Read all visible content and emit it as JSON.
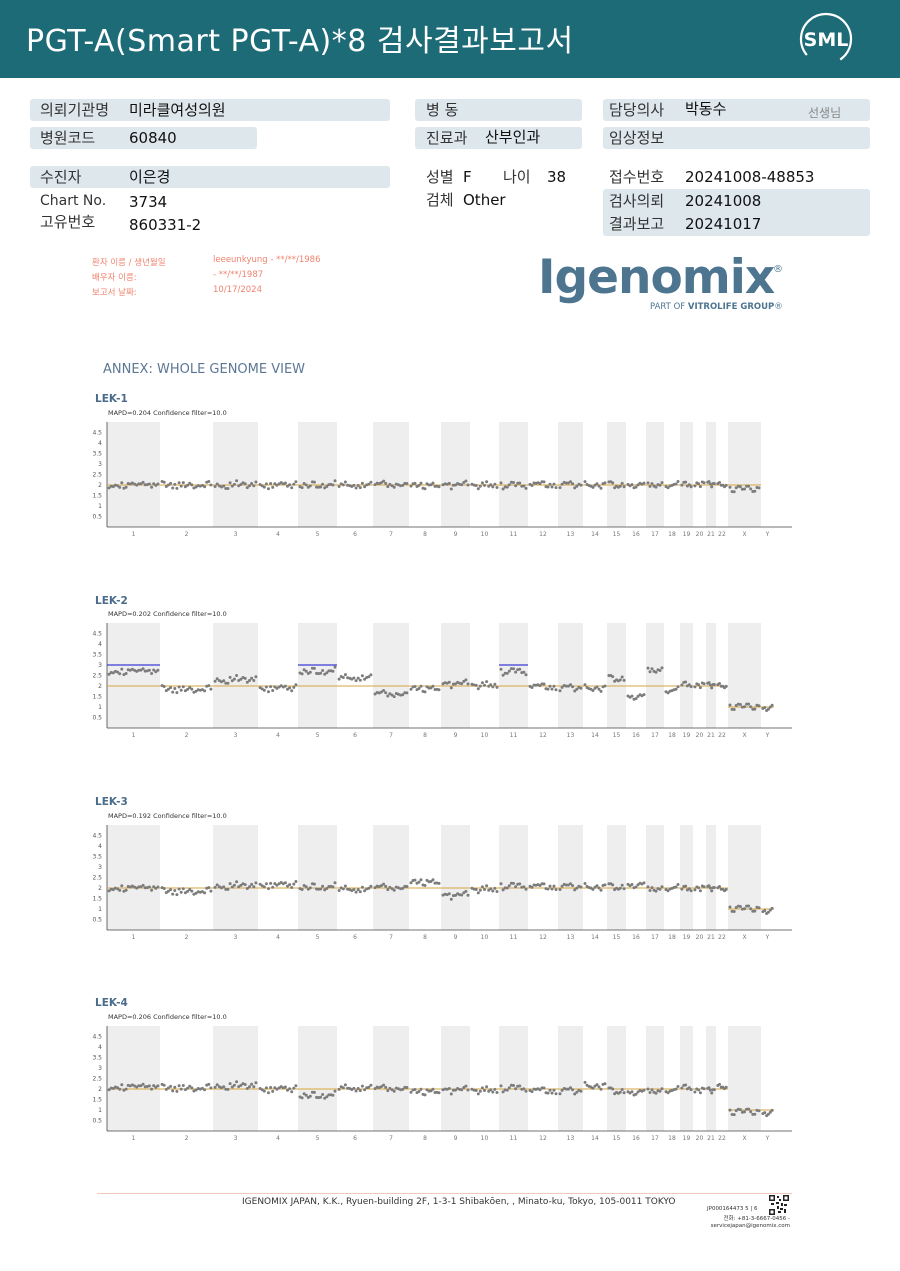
{
  "header": {
    "title": "PGT-A(Smart  PGT-A)*8 검사결과보고서",
    "logo_text": "SML",
    "colors": {
      "band": "#1e6b78",
      "text": "#ffffff"
    }
  },
  "form": {
    "institution": {
      "label": "의뢰기관명",
      "value": "미라클여성의원"
    },
    "hospital_code": {
      "label": "병원코드",
      "value": "60840"
    },
    "ward": {
      "label": "병  동",
      "value": ""
    },
    "department": {
      "label": "진료과",
      "value": "산부인과"
    },
    "doctor": {
      "label": "담당의사",
      "value": "박동수",
      "suffix": "선생님"
    },
    "clinical_info": {
      "label": "임상정보",
      "value": ""
    },
    "patient": {
      "label": "수진자",
      "value": "이은경"
    },
    "chart_no": {
      "label": "Chart No.",
      "value": "3734"
    },
    "unique_no": {
      "label": "고유번호",
      "value": "860331-2"
    },
    "sex": {
      "label": "성별",
      "value": "F"
    },
    "age": {
      "label": "나이",
      "value": "38"
    },
    "specimen": {
      "label": "검체",
      "value": "Other"
    },
    "receipt_no": {
      "label": "접수번호",
      "value": "20241008-48853"
    },
    "request_date": {
      "label": "검사의뢰",
      "value": "20241008"
    },
    "report_date": {
      "label": "결과보고",
      "value": "20241017"
    }
  },
  "patient_info": {
    "name_label": "환자 이름 / 생년월일",
    "name_value": "leeeunkyung - **/**/1986",
    "spouse_label": "배우자 이름:",
    "spouse_value": " - **/**/1987",
    "report_date_label": "보고서 날짜:",
    "report_date_value": "10/17/2024"
  },
  "igenomix": {
    "wordmark": "Igenomix",
    "registered": "®",
    "tagline_prefix": "PART OF ",
    "tagline_brand": "VITROLIFE GROUP",
    "tagline_suffix": "®",
    "color": "#4d7590"
  },
  "annex_title": "ANNEX: WHOLE GENOME VIEW",
  "chart_data": [
    {
      "type": "scatter",
      "title": "LEK-1",
      "subtitle": "MAPD=0.204 Confidence filter=10.0",
      "categories": [
        "1",
        "2",
        "3",
        "4",
        "5",
        "6",
        "7",
        "8",
        "9",
        "10",
        "11",
        "12",
        "13",
        "14",
        "15",
        "16",
        "17",
        "18",
        "19",
        "20",
        "21",
        "22",
        "X",
        "Y"
      ],
      "yticks": [
        "0.5",
        "1",
        "1.5",
        "2",
        "2.5",
        "3",
        "3.5",
        "4",
        "4.5"
      ],
      "ylim": [
        0,
        5
      ],
      "baseline": 2,
      "copy_number": [
        2,
        2,
        2,
        2,
        2,
        2,
        2,
        2,
        2,
        2,
        2,
        2,
        2,
        2,
        2,
        2,
        2,
        2,
        2,
        2,
        2,
        2,
        1.85,
        null
      ],
      "gains": []
    },
    {
      "type": "scatter",
      "title": "LEK-2",
      "subtitle": "MAPD=0.202 Confidence filter=10.0",
      "categories": [
        "1",
        "2",
        "3",
        "4",
        "5",
        "6",
        "7",
        "8",
        "9",
        "10",
        "11",
        "12",
        "13",
        "14",
        "15",
        "16",
        "17",
        "18",
        "19",
        "20",
        "21",
        "22",
        "X",
        "Y"
      ],
      "yticks": [
        "0.5",
        "1",
        "1.5",
        "2",
        "2.5",
        "3",
        "3.5",
        "4",
        "4.5"
      ],
      "ylim": [
        0,
        5
      ],
      "baseline": 2,
      "copy_number": [
        2.7,
        1.85,
        2.3,
        1.9,
        2.7,
        2.4,
        1.6,
        1.9,
        2.1,
        2.05,
        2.7,
        1.95,
        1.9,
        1.9,
        2.35,
        1.5,
        2.75,
        1.8,
        2.05,
        2,
        2,
        2,
        1.05,
        1
      ],
      "gains": [
        {
          "chromosome": "1",
          "level": 3
        },
        {
          "chromosome": "5",
          "level": 3
        },
        {
          "chromosome": "11",
          "level": 3
        }
      ]
    },
    {
      "type": "scatter",
      "title": "LEK-3",
      "subtitle": "MAPD=0.192 Confidence filter=10.0",
      "categories": [
        "1",
        "2",
        "3",
        "4",
        "5",
        "6",
        "7",
        "8",
        "9",
        "10",
        "11",
        "12",
        "13",
        "14",
        "15",
        "16",
        "17",
        "18",
        "19",
        "20",
        "21",
        "22",
        "X",
        "Y"
      ],
      "yticks": [
        "0.5",
        "1",
        "1.5",
        "2",
        "2.5",
        "3",
        "3.5",
        "4",
        "4.5"
      ],
      "ylim": [
        0,
        5
      ],
      "baseline": 2,
      "copy_number": [
        2,
        1.85,
        2.1,
        2.15,
        2.05,
        1.95,
        2,
        2.3,
        1.65,
        1.95,
        2.1,
        2.05,
        2.05,
        2.05,
        2.05,
        2.15,
        1.95,
        2,
        1.95,
        1.95,
        1.95,
        1.95,
        1.05,
        0.95
      ],
      "gains": []
    },
    {
      "type": "scatter",
      "title": "LEK-4",
      "subtitle": "MAPD=0.206 Confidence filter=10.0",
      "categories": [
        "1",
        "2",
        "3",
        "4",
        "5",
        "6",
        "7",
        "8",
        "9",
        "10",
        "11",
        "12",
        "13",
        "14",
        "15",
        "16",
        "17",
        "18",
        "19",
        "20",
        "21",
        "22",
        "X",
        "Y"
      ],
      "yticks": [
        "0.5",
        "1",
        "1.5",
        "2",
        "2.5",
        "3",
        "3.5",
        "4",
        "4.5"
      ],
      "ylim": [
        0,
        5
      ],
      "baseline": 2,
      "copy_number": [
        2.1,
        2.05,
        2.15,
        2,
        1.7,
        2.05,
        2,
        1.9,
        1.95,
        1.95,
        2.05,
        1.9,
        1.9,
        2.15,
        1.9,
        1.85,
        1.9,
        1.95,
        2.05,
        1.9,
        1.9,
        2.1,
        0.95,
        0.9
      ],
      "gains": []
    }
  ],
  "chart_colors": {
    "points": "#7c7c7c",
    "baseline": "#d6a43e",
    "gain": "#3b3bd4",
    "band": "#eeeeee",
    "axis": "#444444"
  },
  "footer": {
    "address": "IGENOMIX JAPAN, K.K., Ryuen-building 2F, 1-3-1 Shibakōen, , Minato-ku, Tokyo, 105-0011 TOKYO",
    "code": "JP000164473    5 | 6",
    "phone": "전화: +81-3-6667-0456 -",
    "email": "servicejapan@igenomix.com"
  }
}
